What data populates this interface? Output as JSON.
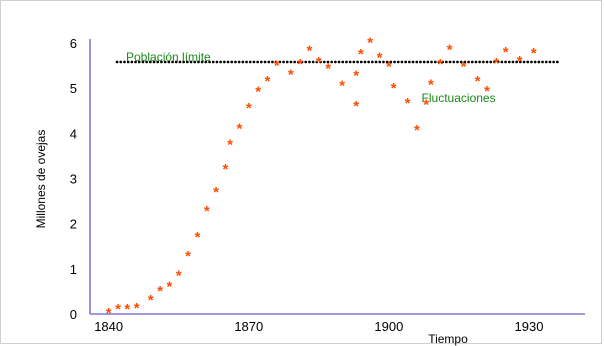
{
  "chart_data": {
    "type": "scatter",
    "title": "",
    "xlabel": "Tiempo",
    "ylabel": "Millones de ovejas",
    "xlim": [
      1836,
      1942
    ],
    "ylim": [
      0,
      6
    ],
    "x_ticks": [
      1840,
      1870,
      1900,
      1930
    ],
    "y_ticks": [
      0,
      1,
      2,
      3,
      4,
      5,
      6
    ],
    "grid": false,
    "marker": "*",
    "colors": {
      "points": "#ff4d00",
      "axis": "#6a5acd",
      "limit_line": "#000000",
      "annotation": "#1a8a1a"
    },
    "reference_line": {
      "y": 5.58,
      "label": "Población límite",
      "style": "dotted"
    },
    "annotations": [
      {
        "text": "Fluctuaciones",
        "x": 1907,
        "y": 4.78
      }
    ],
    "series": [
      {
        "points": [
          [
            1840,
            0.07
          ],
          [
            1842,
            0.15
          ],
          [
            1844,
            0.15
          ],
          [
            1846,
            0.18
          ],
          [
            1849,
            0.35
          ],
          [
            1851,
            0.55
          ],
          [
            1853,
            0.65
          ],
          [
            1855,
            0.9
          ],
          [
            1857,
            1.33
          ],
          [
            1859,
            1.75
          ],
          [
            1861,
            2.32
          ],
          [
            1863,
            2.75
          ],
          [
            1865,
            3.25
          ],
          [
            1866,
            3.8
          ],
          [
            1868,
            4.15
          ],
          [
            1870,
            4.6
          ],
          [
            1872,
            4.97
          ],
          [
            1874,
            5.2
          ],
          [
            1876,
            5.55
          ],
          [
            1879,
            5.35
          ],
          [
            1881,
            5.58
          ],
          [
            1883,
            5.88
          ],
          [
            1885,
            5.62
          ],
          [
            1887,
            5.48
          ],
          [
            1890,
            5.1
          ],
          [
            1893,
            4.65
          ],
          [
            1893,
            5.32
          ],
          [
            1894,
            5.8
          ],
          [
            1896,
            6.05
          ],
          [
            1898,
            5.72
          ],
          [
            1900,
            5.52
          ],
          [
            1901,
            5.05
          ],
          [
            1904,
            4.72
          ],
          [
            1906,
            4.12
          ],
          [
            1908,
            4.68
          ],
          [
            1909,
            5.12
          ],
          [
            1911,
            5.58
          ],
          [
            1913,
            5.9
          ],
          [
            1916,
            5.52
          ],
          [
            1919,
            5.2
          ],
          [
            1921,
            4.98
          ],
          [
            1923,
            5.6
          ],
          [
            1925,
            5.85
          ],
          [
            1928,
            5.65
          ],
          [
            1931,
            5.82
          ]
        ]
      }
    ]
  }
}
